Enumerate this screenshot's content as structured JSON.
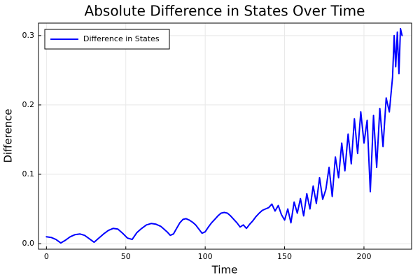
{
  "chart_data": {
    "type": "line",
    "title": "Absolute Difference in States Over Time",
    "xlabel": "Time",
    "ylabel": "Difference",
    "xlim": [
      -5,
      230
    ],
    "ylim": [
      -0.008,
      0.318
    ],
    "x_ticks": [
      0,
      50,
      100,
      150,
      200
    ],
    "x_tick_labels": [
      "0",
      "50",
      "100",
      "150",
      "200"
    ],
    "y_ticks": [
      0.0,
      0.1,
      0.2,
      0.3
    ],
    "y_tick_labels": [
      "0.0",
      "0.1",
      "0.2",
      "0.3"
    ],
    "grid": true,
    "legend_position": "top-left",
    "series": [
      {
        "name": "Difference in States",
        "color": "#0000ff",
        "x": [
          0,
          3,
          6,
          9,
          12,
          15,
          18,
          21,
          24,
          27,
          30,
          33,
          36,
          39,
          42,
          45,
          48,
          51,
          54,
          57,
          60,
          63,
          66,
          69,
          72,
          74,
          76,
          78,
          80,
          82,
          84,
          86,
          88,
          90,
          92,
          94,
          96,
          98,
          100,
          102,
          104,
          106,
          108,
          110,
          112,
          114,
          116,
          118,
          120,
          122,
          124,
          126,
          128,
          130,
          132,
          134,
          136,
          138,
          140,
          142,
          144,
          146,
          148,
          150,
          152,
          154,
          156,
          158,
          160,
          162,
          164,
          166,
          168,
          170,
          172,
          174,
          176,
          178,
          180,
          182,
          184,
          186,
          188,
          190,
          192,
          194,
          196,
          198,
          200,
          202,
          204,
          206,
          208,
          210,
          212,
          214,
          216,
          218,
          219,
          220,
          221,
          222,
          223,
          224
        ],
        "y": [
          0.01,
          0.009,
          0.006,
          0.001,
          0.005,
          0.01,
          0.013,
          0.014,
          0.012,
          0.007,
          0.002,
          0.008,
          0.014,
          0.019,
          0.022,
          0.021,
          0.015,
          0.008,
          0.006,
          0.016,
          0.022,
          0.027,
          0.029,
          0.028,
          0.025,
          0.021,
          0.017,
          0.012,
          0.014,
          0.022,
          0.03,
          0.035,
          0.036,
          0.034,
          0.031,
          0.027,
          0.021,
          0.015,
          0.017,
          0.024,
          0.03,
          0.035,
          0.04,
          0.044,
          0.045,
          0.044,
          0.04,
          0.035,
          0.03,
          0.024,
          0.027,
          0.022,
          0.028,
          0.033,
          0.039,
          0.044,
          0.048,
          0.05,
          0.052,
          0.057,
          0.047,
          0.055,
          0.042,
          0.034,
          0.05,
          0.03,
          0.06,
          0.044,
          0.065,
          0.04,
          0.072,
          0.05,
          0.083,
          0.058,
          0.095,
          0.064,
          0.078,
          0.11,
          0.068,
          0.125,
          0.095,
          0.145,
          0.105,
          0.158,
          0.115,
          0.18,
          0.13,
          0.19,
          0.145,
          0.178,
          0.075,
          0.185,
          0.11,
          0.195,
          0.14,
          0.21,
          0.19,
          0.24,
          0.3,
          0.255,
          0.305,
          0.245,
          0.31,
          0.3
        ]
      }
    ]
  }
}
